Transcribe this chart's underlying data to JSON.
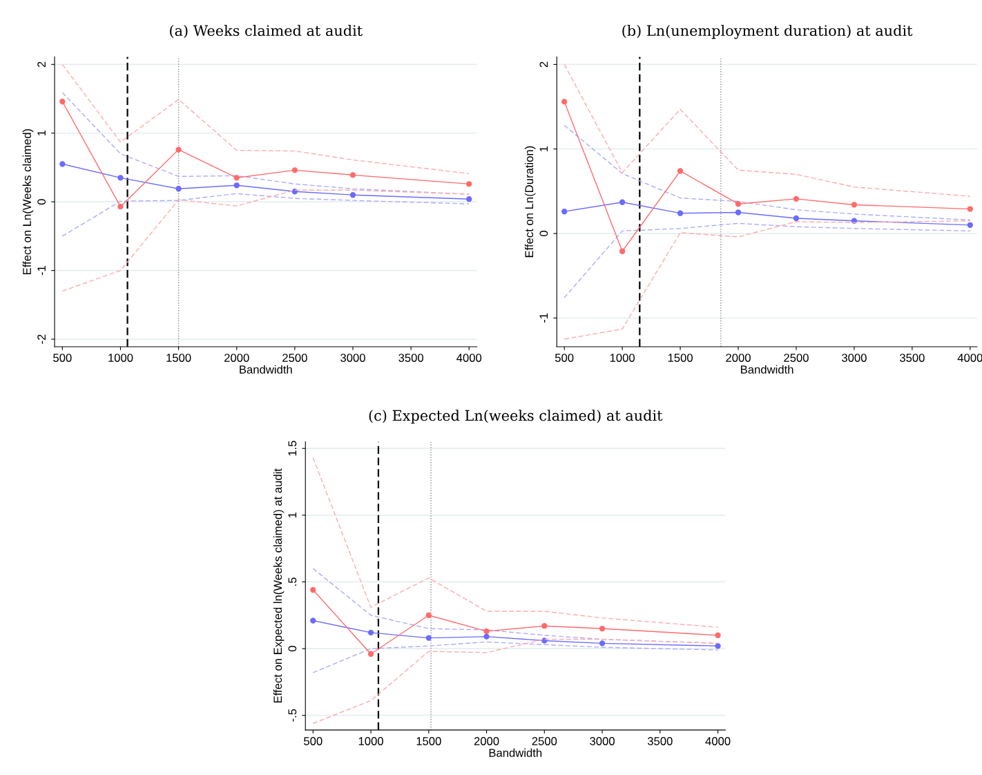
{
  "chart_data": [
    {
      "type": "line",
      "title": "(a) Weeks claimed at audit",
      "xlabel": "Bandwidth",
      "ylabel": "Effect on Ln(Weeks claimed)",
      "x": [
        500,
        1000,
        1500,
        2000,
        2500,
        3000,
        4000
      ],
      "xlim": [
        433,
        4067
      ],
      "xticks": [
        500,
        1000,
        1500,
        2000,
        2500,
        3000,
        3500,
        4000
      ],
      "ylim": [
        -2.11,
        2.11
      ],
      "yticks": [
        -2,
        -1,
        0,
        1,
        2
      ],
      "grid": "y",
      "series": [
        {
          "color": "#ff6b6b",
          "marker": "circle",
          "line_style": "solid",
          "values": [
            1.46,
            -0.07,
            0.76,
            0.35,
            0.46,
            0.39,
            0.26
          ]
        },
        {
          "color": "#ffaaaa",
          "marker": "none",
          "line_style": "dashed",
          "values": [
            2.0,
            0.87,
            1.49,
            0.75,
            0.74,
            0.61,
            0.41
          ]
        },
        {
          "color": "#ffaaaa",
          "marker": "none",
          "line_style": "dashed",
          "values": [
            -1.3,
            -1.0,
            0.03,
            -0.06,
            0.17,
            0.17,
            0.11
          ]
        },
        {
          "color": "#6b6bff",
          "marker": "circle",
          "line_style": "solid",
          "values": [
            0.55,
            0.35,
            0.19,
            0.24,
            0.15,
            0.1,
            0.04
          ]
        },
        {
          "color": "#aaaaff",
          "marker": "none",
          "line_style": "dashed",
          "values": [
            1.59,
            0.7,
            0.37,
            0.38,
            0.26,
            0.19,
            0.11
          ]
        },
        {
          "color": "#aaaaff",
          "marker": "none",
          "line_style": "dashed",
          "values": [
            -0.5,
            0.01,
            0.02,
            0.12,
            0.05,
            0.02,
            -0.03
          ]
        }
      ],
      "ref_lines": [
        {
          "axis": "x",
          "value": 1060,
          "color": "#000000",
          "line_style": "dashed"
        },
        {
          "axis": "x",
          "value": 1500,
          "color": "#888888",
          "line_style": "dotted"
        }
      ]
    },
    {
      "type": "line",
      "title": "(b) Ln(unemployment duration) at audit",
      "xlabel": "Bandwidth",
      "ylabel": "Effect on Ln(Duration)",
      "x": [
        500,
        1000,
        1500,
        2000,
        2500,
        3000,
        4000
      ],
      "xlim": [
        435,
        4060
      ],
      "xticks": [
        500,
        1000,
        1500,
        2000,
        2500,
        3000,
        3500,
        4000
      ],
      "ylim": [
        -1.34,
        2.09
      ],
      "yticks": [
        -1,
        0,
        1,
        2
      ],
      "grid": "y",
      "series": [
        {
          "color": "#ff6b6b",
          "marker": "circle",
          "line_style": "solid",
          "values": [
            1.56,
            -0.21,
            0.74,
            0.35,
            0.41,
            0.34,
            0.29
          ]
        },
        {
          "color": "#ffaaaa",
          "marker": "none",
          "line_style": "dashed",
          "values": [
            2.0,
            0.72,
            1.47,
            0.75,
            0.7,
            0.55,
            0.44
          ]
        },
        {
          "color": "#ffaaaa",
          "marker": "none",
          "line_style": "dashed",
          "values": [
            -1.25,
            -1.13,
            0.01,
            -0.04,
            0.14,
            0.13,
            0.15
          ]
        },
        {
          "color": "#6b6bff",
          "marker": "circle",
          "line_style": "solid",
          "values": [
            0.26,
            0.37,
            0.24,
            0.25,
            0.18,
            0.15,
            0.1
          ]
        },
        {
          "color": "#aaaaff",
          "marker": "none",
          "line_style": "dashed",
          "values": [
            1.28,
            0.71,
            0.42,
            0.38,
            0.28,
            0.23,
            0.16
          ]
        },
        {
          "color": "#aaaaff",
          "marker": "none",
          "line_style": "dashed",
          "values": [
            -0.76,
            0.03,
            0.06,
            0.12,
            0.08,
            0.06,
            0.03
          ]
        }
      ],
      "ref_lines": [
        {
          "axis": "x",
          "value": 1150,
          "color": "#000000",
          "line_style": "dashed"
        },
        {
          "axis": "x",
          "value": 1850,
          "color": "#888888",
          "line_style": "dotted"
        }
      ]
    },
    {
      "type": "line",
      "title": "(c) Expected Ln(weeks claimed) at audit",
      "xlabel": "Bandwidth",
      "ylabel": "Effect on Expected ln(Weeks claimed) at audit",
      "x": [
        500,
        1000,
        1500,
        2000,
        2500,
        3000,
        4000
      ],
      "xlim": [
        434,
        4064
      ],
      "xticks": [
        500,
        1000,
        1500,
        2000,
        2500,
        3000,
        3500,
        4000
      ],
      "ylim": [
        -0.61,
        1.55
      ],
      "yticks": [
        {
          "value": -0.5,
          "label": "-.5"
        },
        0,
        {
          "value": 0.5,
          "label": ".5"
        },
        1,
        1.5
      ],
      "grid": "y",
      "series": [
        {
          "color": "#ff6b6b",
          "marker": "circle",
          "line_style": "solid",
          "values": [
            0.44,
            -0.04,
            0.25,
            0.13,
            0.17,
            0.15,
            0.1
          ]
        },
        {
          "color": "#ffaaaa",
          "marker": "none",
          "line_style": "dashed",
          "values": [
            1.43,
            0.31,
            0.53,
            0.28,
            0.28,
            0.23,
            0.16
          ]
        },
        {
          "color": "#ffaaaa",
          "marker": "none",
          "line_style": "dashed",
          "values": [
            -0.56,
            -0.39,
            -0.02,
            -0.03,
            0.07,
            0.07,
            0.04
          ]
        },
        {
          "color": "#6b6bff",
          "marker": "circle",
          "line_style": "solid",
          "values": [
            0.21,
            0.12,
            0.08,
            0.09,
            0.06,
            0.04,
            0.02
          ]
        },
        {
          "color": "#aaaaff",
          "marker": "none",
          "line_style": "dashed",
          "values": [
            0.6,
            0.25,
            0.15,
            0.14,
            0.1,
            0.07,
            0.04
          ]
        },
        {
          "color": "#aaaaff",
          "marker": "none",
          "line_style": "dashed",
          "values": [
            -0.18,
            0.0,
            0.02,
            0.05,
            0.03,
            0.01,
            -0.01
          ]
        }
      ],
      "ref_lines": [
        {
          "axis": "x",
          "value": 1065,
          "color": "#000000",
          "line_style": "dashed"
        },
        {
          "axis": "x",
          "value": 1520,
          "color": "#888888",
          "line_style": "dotted"
        }
      ]
    }
  ]
}
